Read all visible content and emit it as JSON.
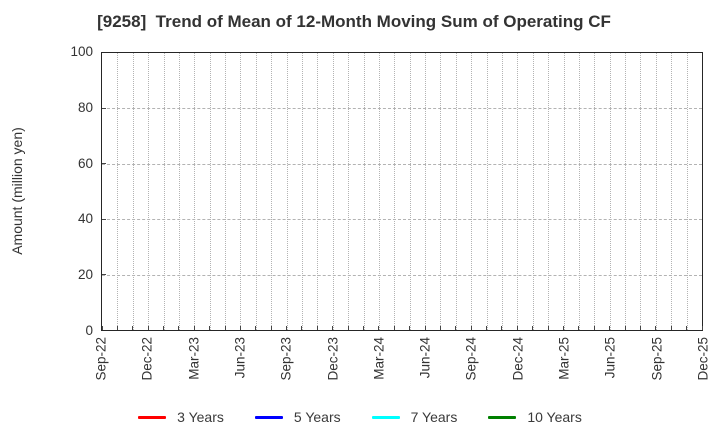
{
  "chart_data": {
    "type": "line",
    "title": "[9258]  Trend of Mean of 12-Month Moving Sum of Operating CF",
    "xlabel": "",
    "ylabel": "Amount (million yen)",
    "ylim": [
      0,
      100
    ],
    "yticks": [
      0,
      20,
      40,
      60,
      80,
      100
    ],
    "x_tick_labels": [
      "Sep-22",
      "Dec-22",
      "Mar-23",
      "Jun-23",
      "Sep-23",
      "Dec-23",
      "Mar-24",
      "Jun-24",
      "Sep-24",
      "Dec-24",
      "Mar-25",
      "Jun-25",
      "Sep-25",
      "Dec-25"
    ],
    "months_per_tick": 3,
    "total_month_intervals": 39,
    "grid": true,
    "grid_style": "dotted",
    "legend_position": "bottom",
    "plot_empty": true,
    "series": [
      {
        "name": "3 Years",
        "color": "#ff0000",
        "values": []
      },
      {
        "name": "5 Years",
        "color": "#0000ff",
        "values": []
      },
      {
        "name": "7 Years",
        "color": "#00ffff",
        "values": []
      },
      {
        "name": "10 Years",
        "color": "#008000",
        "values": []
      }
    ]
  },
  "colors": {
    "background": "#ffffff",
    "text": "#333333",
    "grid": "#b3b3b3",
    "axis": "#262626"
  }
}
